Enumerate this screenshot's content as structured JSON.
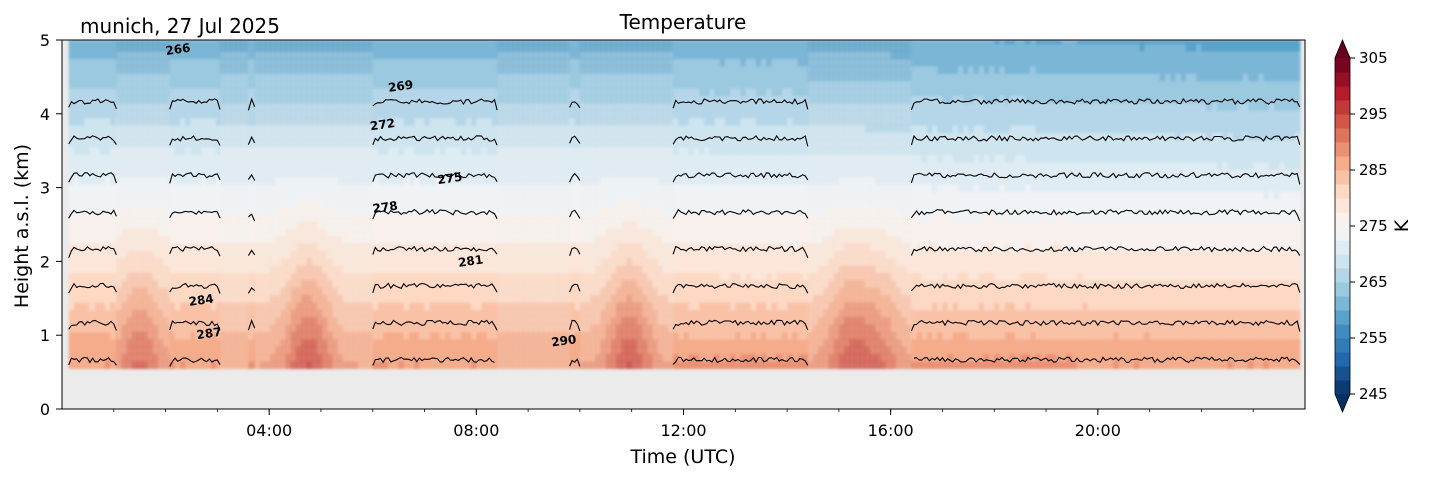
{
  "chart_data": {
    "type": "heatmap",
    "title": "Temperature",
    "subtitle": "munich, 27 Jul 2025",
    "xlabel": "Time (UTC)",
    "ylabel": "Height a.s.l. (km)",
    "x_range_hours": [
      0,
      24
    ],
    "ylim": [
      0,
      5
    ],
    "x_ticks": [
      {
        "hour": 4,
        "label": "04:00"
      },
      {
        "hour": 8,
        "label": "08:00"
      },
      {
        "hour": 12,
        "label": "12:00"
      },
      {
        "hour": 16,
        "label": "16:00"
      },
      {
        "hour": 20,
        "label": "20:00"
      }
    ],
    "y_ticks": [
      {
        "value": 0,
        "label": "0"
      },
      {
        "value": 1,
        "label": "1"
      },
      {
        "value": 2,
        "label": "2"
      },
      {
        "value": 3,
        "label": "3"
      },
      {
        "value": 4,
        "label": "4"
      },
      {
        "value": 5,
        "label": "5"
      }
    ],
    "data_bottom_km": 0.55,
    "data_top_km": 5.0,
    "surface_temperature_K": 288,
    "lapse_rate_K_per_km": 6,
    "measurement_segments": [
      {
        "start": 0.13,
        "end": 1.05,
        "quality": "good"
      },
      {
        "start": 1.05,
        "end": 2.08,
        "quality": "model"
      },
      {
        "start": 2.08,
        "end": 3.05,
        "quality": "good"
      },
      {
        "start": 3.05,
        "end": 3.6,
        "quality": "model"
      },
      {
        "start": 3.6,
        "end": 3.72,
        "quality": "good"
      },
      {
        "start": 3.72,
        "end": 6.0,
        "quality": "model"
      },
      {
        "start": 6.0,
        "end": 8.4,
        "quality": "good"
      },
      {
        "start": 8.4,
        "end": 9.8,
        "quality": "model"
      },
      {
        "start": 9.8,
        "end": 10.0,
        "quality": "good"
      },
      {
        "start": 10.0,
        "end": 11.8,
        "quality": "model"
      },
      {
        "start": 11.8,
        "end": 14.4,
        "quality": "good"
      },
      {
        "start": 14.4,
        "end": 16.4,
        "quality": "model"
      },
      {
        "start": 16.4,
        "end": 23.9,
        "quality": "good"
      }
    ],
    "warm_plumes": [
      {
        "hour": 1.5,
        "amplitude_K": 10
      },
      {
        "hour": 4.75,
        "amplitude_K": 14
      },
      {
        "hour": 10.95,
        "amplitude_K": 14
      },
      {
        "hour": 15.2,
        "amplitude_K": 12
      },
      {
        "hour": 15.8,
        "amplitude_K": 8
      }
    ],
    "contour_levels": [
      266,
      269,
      272,
      275,
      278,
      281,
      284,
      287,
      290
    ],
    "contour_labels": [
      {
        "text": "266",
        "hour": 2.25,
        "height": 4.82
      },
      {
        "text": "269",
        "hour": 6.55,
        "height": 4.32
      },
      {
        "text": "272",
        "hour": 6.2,
        "height": 3.8
      },
      {
        "text": "275",
        "hour": 7.5,
        "height": 3.07
      },
      {
        "text": "278",
        "hour": 6.25,
        "height": 2.68
      },
      {
        "text": "281",
        "hour": 7.9,
        "height": 1.95
      },
      {
        "text": "284",
        "hour": 2.7,
        "height": 1.42
      },
      {
        "text": "287",
        "hour": 2.85,
        "height": 0.97
      },
      {
        "text": "290",
        "hour": 9.7,
        "height": 0.87
      }
    ],
    "colorbar": {
      "label": "K",
      "min": 245,
      "max": 305,
      "step": 2.5,
      "extend": "both",
      "colormap": "RdBu_r",
      "ticks": [
        "245",
        "255",
        "265",
        "275",
        "285",
        "295",
        "305"
      ]
    },
    "grid": false
  },
  "colors": {
    "nodata_gray": "#ebebeb",
    "contour_line": "#000000"
  }
}
